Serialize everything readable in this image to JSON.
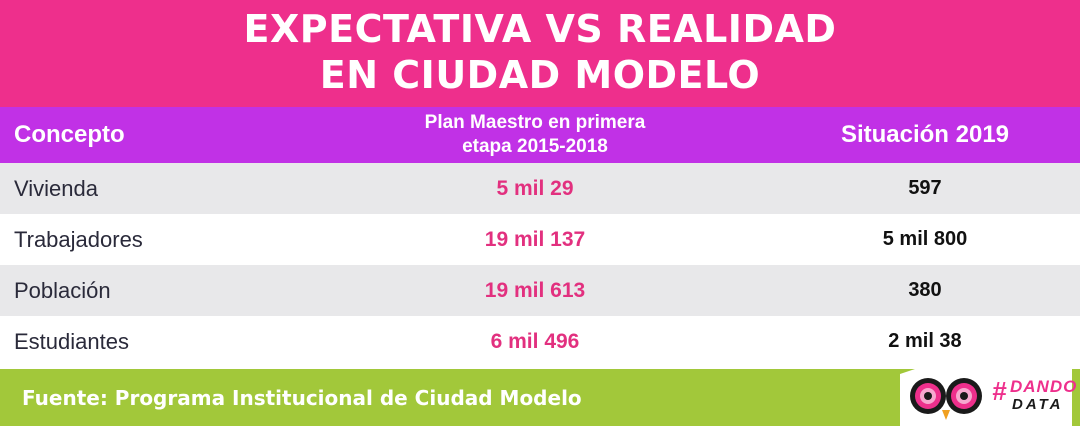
{
  "chart_data": {
    "type": "table",
    "title": [
      "EXPECTATIVA VS REALIDAD",
      "EN CIUDAD MODELO"
    ],
    "columns": [
      "Concepto",
      "Plan Maestro en primera etapa 2015-2018",
      "Situación 2019"
    ],
    "header_plan_lines": [
      "Plan Maestro en primera",
      "etapa 2015-2018"
    ],
    "rows": [
      {
        "concepto": "Vivienda",
        "plan": "5 mil 29",
        "situacion": "597"
      },
      {
        "concepto": "Trabajadores",
        "plan": "19 mil 137",
        "situacion": "5 mil 800"
      },
      {
        "concepto": "Población",
        "plan": "19 mil 613",
        "situacion": "380"
      },
      {
        "concepto": "Estudiantes",
        "plan": "6 mil 496",
        "situacion": "2 mil 38"
      }
    ],
    "values_numeric": {
      "plan": [
        5029,
        19137,
        19613,
        6496
      ],
      "situacion": [
        597,
        5800,
        380,
        2038
      ]
    }
  },
  "footer": {
    "source": "Fuente: Programa Institucional de Ciudad Modelo"
  },
  "logo": {
    "hash": "#",
    "line1": "DANDO",
    "line2": "DATA",
    "icon": "owl-eyes-icon"
  },
  "colors": {
    "title_band": "#ee2f8c",
    "header_band": "#c131e6",
    "plan_values": "#e2307f",
    "footer_band": "#a2c83a",
    "row_shade": "#e8e8ea"
  }
}
